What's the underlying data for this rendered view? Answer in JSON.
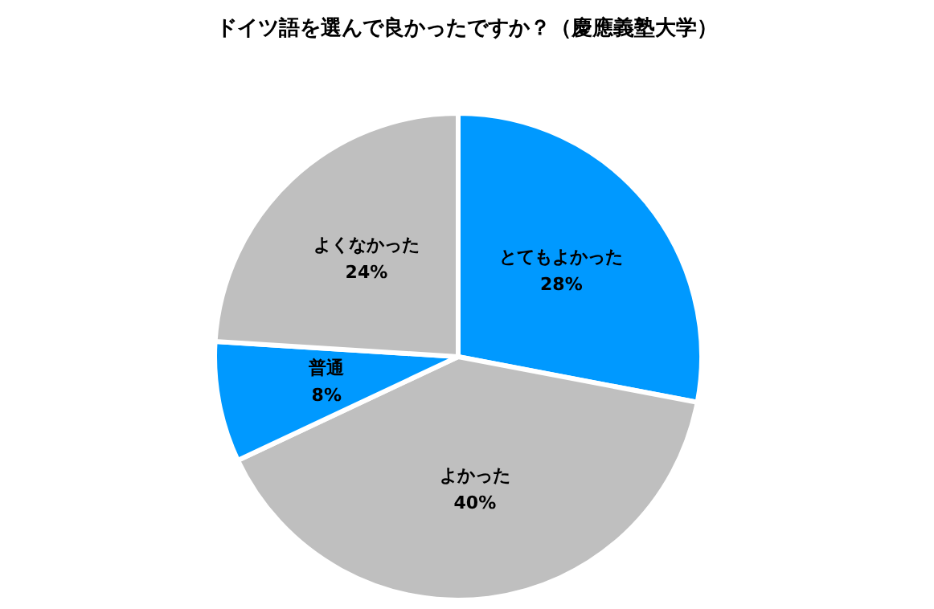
{
  "chart_data": {
    "type": "pie",
    "title": "ドイツ語を選んで良かったですか？（慶應義塾大学）",
    "categories": [
      "とてもよかった",
      "よかった",
      "普通",
      "よくなかった"
    ],
    "values": [
      28,
      40,
      8,
      24
    ],
    "value_labels": [
      "28%",
      "40%",
      "8%",
      "24%"
    ],
    "colors": [
      "#0099ff",
      "#bfbfbf",
      "#0099ff",
      "#bfbfbf"
    ],
    "legend": false
  }
}
